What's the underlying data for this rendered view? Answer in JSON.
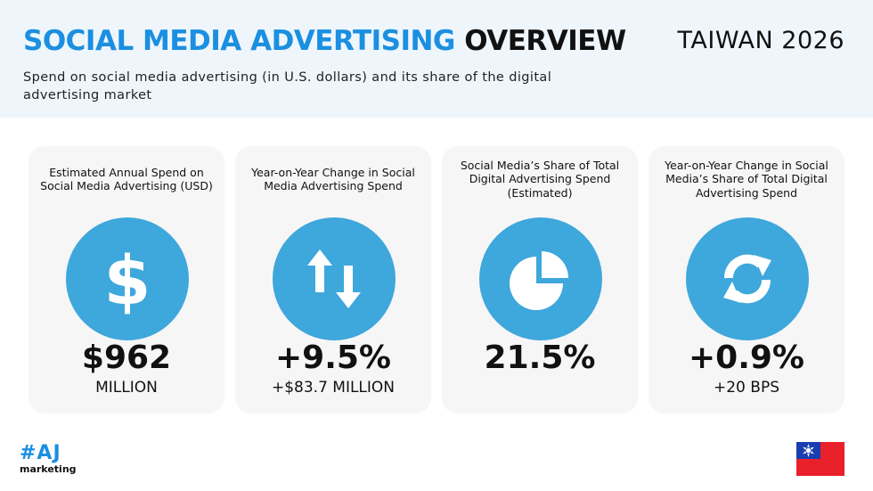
{
  "header": {
    "title_blue": "SOCIAL MEDIA ADVERTISING",
    "title_dark": "OVERVIEW",
    "region": "TAIWAN 2026",
    "subtitle": "Spend on social media advertising (in U.S. dollars) and its share of the digital advertising market"
  },
  "colors": {
    "accent": "#1b8fe0",
    "circle": "#3ea7dc",
    "card_bg": "#f6f6f6",
    "header_bg": "#eef6fc"
  },
  "cards": [
    {
      "label": "Estimated Annual Spend on Social Media Advertising (USD)",
      "icon": "dollar-icon",
      "value": "$962",
      "sub": "MILLION"
    },
    {
      "label": "Year-on-Year Change in Social Media Advertising Spend",
      "icon": "up-down-arrows-icon",
      "value": "+9.5%",
      "sub": "+$83.7 MILLION"
    },
    {
      "label": "Social Media’s Share of Total Digital Advertising Spend (Estimated)",
      "icon": "pie-chart-icon",
      "value": "21.5%",
      "sub": ""
    },
    {
      "label": "Year-on-Year Change in Social Media’s Share of Total Digital Advertising Spend",
      "icon": "refresh-icon",
      "value": "+0.9%",
      "sub": "+20 BPS"
    }
  ],
  "footer": {
    "logo_mark": "#AJ",
    "logo_text": "marketing",
    "flag": "taiwan-flag-icon"
  }
}
